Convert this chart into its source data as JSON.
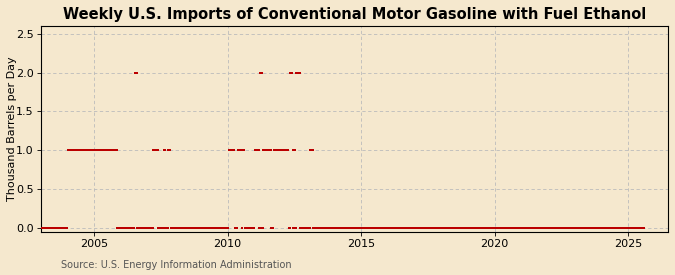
{
  "title": "Weekly U.S. Imports of Conventional Motor Gasoline with Fuel Ethanol",
  "ylabel": "Thousand Barrels per Day",
  "source": "Source: U.S. Energy Information Administration",
  "xlim": [
    2003.0,
    2026.5
  ],
  "ylim": [
    -0.05,
    2.6
  ],
  "yticks": [
    0.0,
    0.5,
    1.0,
    1.5,
    2.0,
    2.5
  ],
  "xticks": [
    2005,
    2010,
    2015,
    2020,
    2025
  ],
  "background_color": "#f5e8ce",
  "plot_background_color": "#f5e8ce",
  "grid_color": "#bbbbbb",
  "line_color": "#bb0000",
  "title_fontsize": 10.5,
  "label_fontsize": 8,
  "tick_fontsize": 8,
  "source_fontsize": 7,
  "segments": [
    {
      "x_start": 2004.0,
      "x_end": 2005.85,
      "y": 1.0
    },
    {
      "x_start": 2006.5,
      "x_end": 2006.6,
      "y": 2.0
    },
    {
      "x_start": 2007.2,
      "x_end": 2007.4,
      "y": 1.0
    },
    {
      "x_start": 2007.6,
      "x_end": 2007.65,
      "y": 1.0
    },
    {
      "x_start": 2007.75,
      "x_end": 2007.85,
      "y": 1.0
    },
    {
      "x_start": 2010.03,
      "x_end": 2010.25,
      "y": 1.0
    },
    {
      "x_start": 2010.38,
      "x_end": 2010.5,
      "y": 1.0
    },
    {
      "x_start": 2010.55,
      "x_end": 2010.63,
      "y": 1.0
    },
    {
      "x_start": 2011.0,
      "x_end": 2011.18,
      "y": 1.0
    },
    {
      "x_start": 2011.22,
      "x_end": 2011.28,
      "y": 2.0
    },
    {
      "x_start": 2011.32,
      "x_end": 2011.63,
      "y": 1.0
    },
    {
      "x_start": 2011.72,
      "x_end": 2012.28,
      "y": 1.0
    },
    {
      "x_start": 2012.33,
      "x_end": 2012.43,
      "y": 2.0
    },
    {
      "x_start": 2012.45,
      "x_end": 2012.53,
      "y": 1.0
    },
    {
      "x_start": 2012.57,
      "x_end": 2012.7,
      "y": 2.0
    },
    {
      "x_start": 2013.08,
      "x_end": 2013.2,
      "y": 1.0
    }
  ],
  "zero_line_segments": [
    {
      "x_start": 2003.0,
      "x_end": 2004.0
    },
    {
      "x_start": 2005.85,
      "x_end": 2025.5
    }
  ]
}
